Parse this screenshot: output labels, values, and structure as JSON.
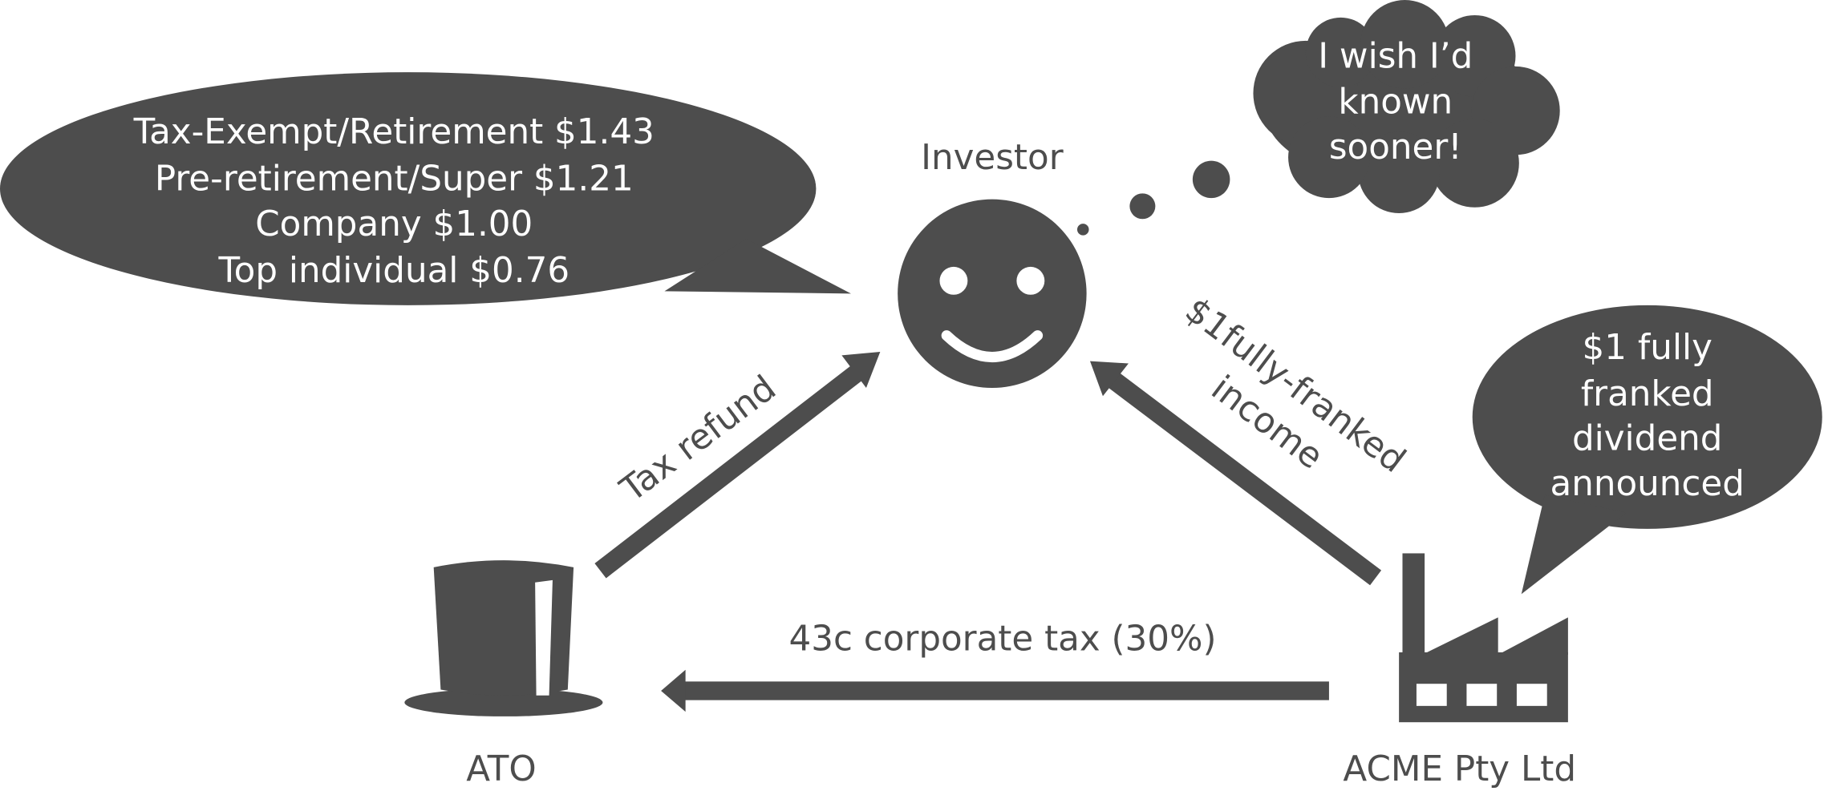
{
  "bubbles": {
    "returns": {
      "lines": [
        "Tax-Exempt/Retirement $1.43",
        "Pre-retirement/Super $1.21",
        "Company $1.00",
        "Top individual $0.76"
      ]
    },
    "thought": {
      "lines": [
        "I wish I’d",
        "known",
        "sooner!"
      ]
    },
    "announcement": {
      "lines": [
        "$1 fully",
        "franked",
        "dividend",
        "announced"
      ]
    }
  },
  "nodes": {
    "investor": "Investor",
    "ato": "ATO",
    "acme": "ACME Pty Ltd"
  },
  "edges": {
    "refund": "Tax refund",
    "dividend": [
      "$1fully-franked",
      "income"
    ],
    "tax": "43c corporate tax (30%)"
  }
}
